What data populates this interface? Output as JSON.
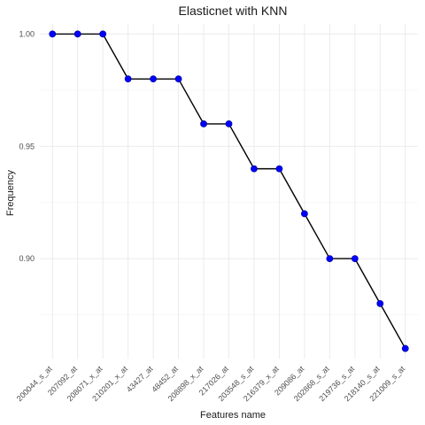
{
  "chart_data": {
    "type": "line",
    "title": "Elasticnet with KNN",
    "xlabel": "Features name",
    "ylabel": "Frequency",
    "categories": [
      "200044_s_at",
      "207092_at",
      "208071_x_at",
      "210201_x_at",
      "43427_at",
      "48452_at",
      "208898_x_at",
      "217026_at",
      "203548_s_at",
      "216379_x_at",
      "209086_at",
      "202868_s_at",
      "219736_s_at",
      "218140_s_at",
      "221009_s_at"
    ],
    "series": [
      {
        "values": [
          1.0,
          1.0,
          1.0,
          0.98,
          0.98,
          0.98,
          0.96,
          0.96,
          0.94,
          0.94,
          0.92,
          0.9,
          0.9,
          0.88,
          0.86
        ]
      }
    ],
    "ylim": [
      0.8555,
      1.0045
    ],
    "yticks": [
      0.9,
      0.95,
      1.0
    ],
    "ytick_labels": [
      "0.90",
      "0.95",
      "1.00"
    ],
    "grid": true,
    "line_color": "#000000",
    "marker_color": "#0000ff"
  }
}
